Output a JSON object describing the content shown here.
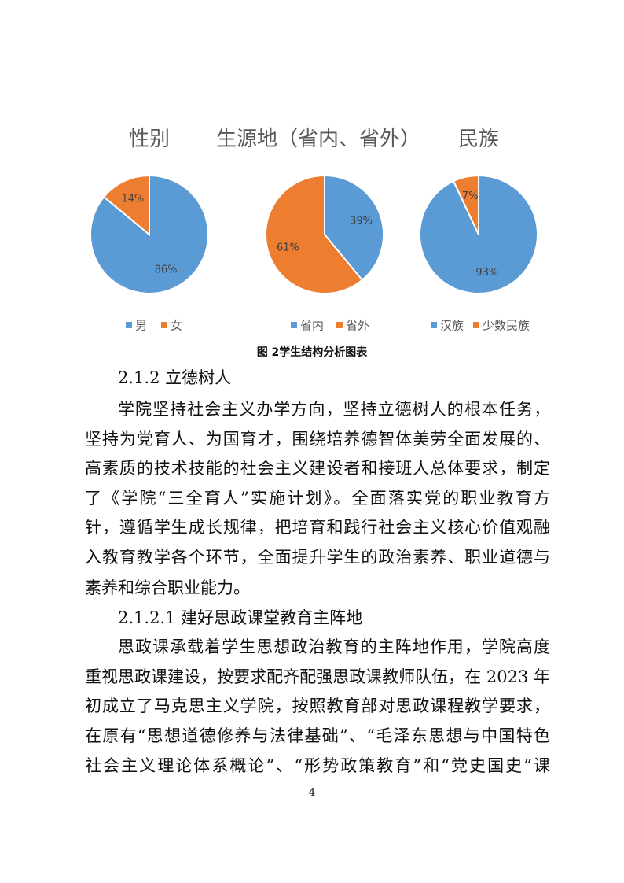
{
  "chart_data": [
    {
      "type": "pie",
      "title": "性别",
      "categories": [
        "男",
        "女"
      ],
      "values": [
        86,
        14
      ],
      "labels": [
        "86%",
        "14%"
      ],
      "colors": [
        "#5B9BD5",
        "#ED7D31"
      ],
      "legend": "bottom"
    },
    {
      "type": "pie",
      "title": "生源地（省内、省外）",
      "categories": [
        "省内",
        "省外"
      ],
      "values": [
        39,
        61
      ],
      "labels": [
        "39%",
        "61%"
      ],
      "colors": [
        "#5B9BD5",
        "#ED7D31"
      ],
      "legend": "bottom"
    },
    {
      "type": "pie",
      "title": "民族",
      "categories": [
        "汉族",
        "少数民族"
      ],
      "values": [
        93,
        7
      ],
      "labels": [
        "93%",
        "7%"
      ],
      "colors": [
        "#5B9BD5",
        "#ED7D31"
      ],
      "legend": "bottom"
    }
  ],
  "caption": "图 2学生结构分析图表",
  "lines": [
    {
      "text": "2.1.2 立德树人",
      "type": "heading"
    },
    {
      "text": "学院坚持社会主义办学方向，坚持立德树人的根本任务，",
      "type": "indent"
    },
    {
      "text": "坚持为党育人、为国育才，围绕培养德智体美劳全面发展的、",
      "type": "full"
    },
    {
      "text": "高素质的技术技能的社会主义建设者和接班人总体要求，制定",
      "type": "full"
    },
    {
      "text": "了《学院“三全育人”实施计划》。全面落实党的职业教育方",
      "type": "full"
    },
    {
      "text": "针，遵循学生成长规律，把培育和践行社会主义核心价值观融",
      "type": "full"
    },
    {
      "text": "入教育教学各个环节，全面提升学生的政治素养、职业道德与",
      "type": "full"
    },
    {
      "text": "素养和综合职业能力。",
      "type": "short"
    },
    {
      "text": "2.1.2.1 建好思政课堂教育主阵地",
      "type": "heading"
    },
    {
      "text": "思政课承载着学生思想政治教育的主阵地作用，学院高度",
      "type": "indent"
    },
    {
      "text": "重视思政课建设，按要求配齐配强思政课教师队伍，在 2023 年",
      "type": "full"
    },
    {
      "text": "初成立了马克思主义学院，按照教育部对思政课程教学要求，",
      "type": "full"
    },
    {
      "text": "在原有“思想道德修养与法律基础”、“毛泽东思想与中国特色",
      "type": "full"
    },
    {
      "text": "社会主义理论体系概论”、“形势政策教育”和“党史国史”课",
      "type": "full"
    }
  ],
  "page_number": "4"
}
